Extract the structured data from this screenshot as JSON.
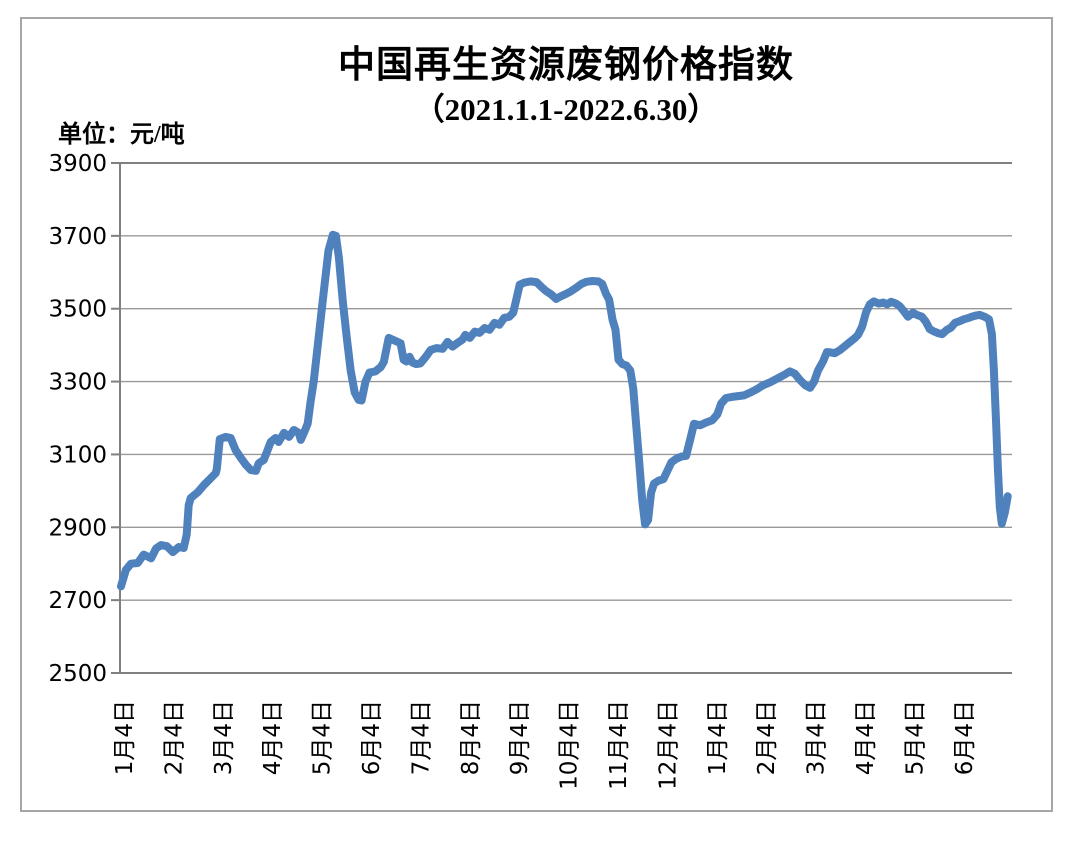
{
  "page": {
    "background": "#ffffff",
    "frame_border_color": "#a6a6a6"
  },
  "chart_data": {
    "type": "line",
    "title": "中国再生资源废钢价格指数",
    "subtitle": "（2021.1.1-2022.6.30）",
    "unit_label": "单位：元/吨",
    "xlabel": "",
    "ylabel": "元/吨",
    "ylim": [
      2500,
      3900
    ],
    "y_ticks": [
      3900,
      3700,
      3500,
      3300,
      3100,
      2900,
      2700,
      2500
    ],
    "x_tick_labels": [
      "1月4日",
      "2月4日",
      "3月4日",
      "4月4日",
      "5月4日",
      "6月4日",
      "7月4日",
      "8月4日",
      "9月4日",
      "10月4日",
      "11月4日",
      "12月4日",
      "1月4日",
      "2月4日",
      "3月4日",
      "4月4日",
      "5月4日",
      "6月4日"
    ],
    "x_unit": "months after first tick (1月4日 2021); integer values fall on the monthly ticks",
    "grid": true,
    "legend": false,
    "line_color": "#4F81BD",
    "gridline_color": "#999999",
    "axis_color": "#808080",
    "series": [
      {
        "points": [
          [
            0,
            2738
          ],
          [
            0.1,
            2783
          ],
          [
            0.2,
            2800
          ],
          [
            0.34,
            2802
          ],
          [
            0.46,
            2825
          ],
          [
            0.61,
            2815
          ],
          [
            0.71,
            2842
          ],
          [
            0.81,
            2851
          ],
          [
            0.93,
            2848
          ],
          [
            1.05,
            2832
          ],
          [
            1.17,
            2846
          ],
          [
            1.27,
            2843
          ],
          [
            1.33,
            2880
          ],
          [
            1.37,
            2961
          ],
          [
            1.41,
            2980
          ],
          [
            1.56,
            2997
          ],
          [
            1.68,
            3016
          ],
          [
            1.82,
            3035
          ],
          [
            1.92,
            3049
          ],
          [
            1.94,
            3060
          ],
          [
            2.0,
            3142
          ],
          [
            2.12,
            3148
          ],
          [
            2.22,
            3145
          ],
          [
            2.32,
            3112
          ],
          [
            2.43,
            3090
          ],
          [
            2.53,
            3071
          ],
          [
            2.63,
            3057
          ],
          [
            2.73,
            3055
          ],
          [
            2.79,
            3076
          ],
          [
            2.89,
            3085
          ],
          [
            3.03,
            3134
          ],
          [
            3.13,
            3145
          ],
          [
            3.19,
            3134
          ],
          [
            3.3,
            3159
          ],
          [
            3.4,
            3148
          ],
          [
            3.5,
            3167
          ],
          [
            3.6,
            3159
          ],
          [
            3.64,
            3140
          ],
          [
            3.72,
            3165
          ],
          [
            3.78,
            3185
          ],
          [
            3.84,
            3247
          ],
          [
            3.9,
            3300
          ],
          [
            4.0,
            3420
          ],
          [
            4.1,
            3540
          ],
          [
            4.2,
            3660
          ],
          [
            4.29,
            3703
          ],
          [
            4.35,
            3700
          ],
          [
            4.41,
            3640
          ],
          [
            4.49,
            3520
          ],
          [
            4.57,
            3420
          ],
          [
            4.65,
            3330
          ],
          [
            4.73,
            3270
          ],
          [
            4.81,
            3250
          ],
          [
            4.87,
            3248
          ],
          [
            4.95,
            3300
          ],
          [
            5.03,
            3325
          ],
          [
            5.15,
            3328
          ],
          [
            5.26,
            3340
          ],
          [
            5.32,
            3354
          ],
          [
            5.42,
            3420
          ],
          [
            5.5,
            3415
          ],
          [
            5.58,
            3410
          ],
          [
            5.66,
            3405
          ],
          [
            5.72,
            3360
          ],
          [
            5.78,
            3355
          ],
          [
            5.84,
            3368
          ],
          [
            5.9,
            3352
          ],
          [
            5.98,
            3348
          ],
          [
            6.06,
            3350
          ],
          [
            6.17,
            3368
          ],
          [
            6.27,
            3387
          ],
          [
            6.39,
            3392
          ],
          [
            6.51,
            3390
          ],
          [
            6.61,
            3409
          ],
          [
            6.71,
            3396
          ],
          [
            6.81,
            3406
          ],
          [
            6.91,
            3415
          ],
          [
            6.97,
            3428
          ],
          [
            7.06,
            3420
          ],
          [
            7.16,
            3437
          ],
          [
            7.26,
            3434
          ],
          [
            7.36,
            3447
          ],
          [
            7.46,
            3442
          ],
          [
            7.56,
            3461
          ],
          [
            7.66,
            3456
          ],
          [
            7.76,
            3475
          ],
          [
            7.86,
            3478
          ],
          [
            7.94,
            3489
          ],
          [
            8.01,
            3530
          ],
          [
            8.07,
            3566
          ],
          [
            8.17,
            3572
          ],
          [
            8.29,
            3575
          ],
          [
            8.41,
            3573
          ],
          [
            8.51,
            3560
          ],
          [
            8.61,
            3548
          ],
          [
            8.71,
            3539
          ],
          [
            8.81,
            3527
          ],
          [
            8.9,
            3534
          ],
          [
            9.0,
            3540
          ],
          [
            9.1,
            3547
          ],
          [
            9.22,
            3558
          ],
          [
            9.32,
            3568
          ],
          [
            9.42,
            3574
          ],
          [
            9.54,
            3576
          ],
          [
            9.66,
            3575
          ],
          [
            9.74,
            3568
          ],
          [
            9.82,
            3540
          ],
          [
            9.88,
            3525
          ],
          [
            9.95,
            3470
          ],
          [
            10.01,
            3442
          ],
          [
            10.07,
            3360
          ],
          [
            10.15,
            3348
          ],
          [
            10.23,
            3344
          ],
          [
            10.31,
            3330
          ],
          [
            10.37,
            3280
          ],
          [
            10.43,
            3180
          ],
          [
            10.49,
            3080
          ],
          [
            10.55,
            2975
          ],
          [
            10.61,
            2908
          ],
          [
            10.67,
            2920
          ],
          [
            10.73,
            2995
          ],
          [
            10.79,
            3020
          ],
          [
            10.88,
            3028
          ],
          [
            10.98,
            3032
          ],
          [
            11.06,
            3055
          ],
          [
            11.14,
            3078
          ],
          [
            11.24,
            3088
          ],
          [
            11.34,
            3094
          ],
          [
            11.44,
            3096
          ],
          [
            11.52,
            3140
          ],
          [
            11.6,
            3184
          ],
          [
            11.72,
            3180
          ],
          [
            11.85,
            3188
          ],
          [
            11.97,
            3194
          ],
          [
            12.07,
            3210
          ],
          [
            12.15,
            3240
          ],
          [
            12.25,
            3255
          ],
          [
            12.37,
            3258
          ],
          [
            12.49,
            3260
          ],
          [
            12.61,
            3262
          ],
          [
            12.74,
            3270
          ],
          [
            12.88,
            3280
          ],
          [
            13.0,
            3290
          ],
          [
            13.14,
            3298
          ],
          [
            13.28,
            3308
          ],
          [
            13.42,
            3318
          ],
          [
            13.54,
            3328
          ],
          [
            13.64,
            3322
          ],
          [
            13.74,
            3305
          ],
          [
            13.85,
            3290
          ],
          [
            13.95,
            3283
          ],
          [
            14.03,
            3300
          ],
          [
            14.11,
            3330
          ],
          [
            14.21,
            3355
          ],
          [
            14.29,
            3381
          ],
          [
            14.37,
            3380
          ],
          [
            14.45,
            3378
          ],
          [
            14.55,
            3386
          ],
          [
            14.66,
            3398
          ],
          [
            14.76,
            3409
          ],
          [
            14.86,
            3420
          ],
          [
            14.92,
            3428
          ],
          [
            15.0,
            3450
          ],
          [
            15.08,
            3490
          ],
          [
            15.16,
            3512
          ],
          [
            15.24,
            3520
          ],
          [
            15.34,
            3514
          ],
          [
            15.43,
            3517
          ],
          [
            15.51,
            3512
          ],
          [
            15.59,
            3519
          ],
          [
            15.69,
            3514
          ],
          [
            15.77,
            3506
          ],
          [
            15.85,
            3493
          ],
          [
            15.93,
            3478
          ],
          [
            16.03,
            3489
          ],
          [
            16.11,
            3483
          ],
          [
            16.21,
            3478
          ],
          [
            16.29,
            3465
          ],
          [
            16.37,
            3444
          ],
          [
            16.45,
            3438
          ],
          [
            16.54,
            3433
          ],
          [
            16.62,
            3430
          ],
          [
            16.72,
            3442
          ],
          [
            16.8,
            3448
          ],
          [
            16.88,
            3461
          ],
          [
            16.98,
            3466
          ],
          [
            17.06,
            3471
          ],
          [
            17.14,
            3474
          ],
          [
            17.22,
            3478
          ],
          [
            17.3,
            3481
          ],
          [
            17.38,
            3483
          ],
          [
            17.48,
            3478
          ],
          [
            17.57,
            3471
          ],
          [
            17.63,
            3430
          ],
          [
            17.67,
            3330
          ],
          [
            17.71,
            3200
          ],
          [
            17.75,
            3060
          ],
          [
            17.79,
            2955
          ],
          [
            17.83,
            2910
          ],
          [
            17.89,
            2940
          ],
          [
            17.95,
            2985
          ]
        ]
      }
    ]
  }
}
